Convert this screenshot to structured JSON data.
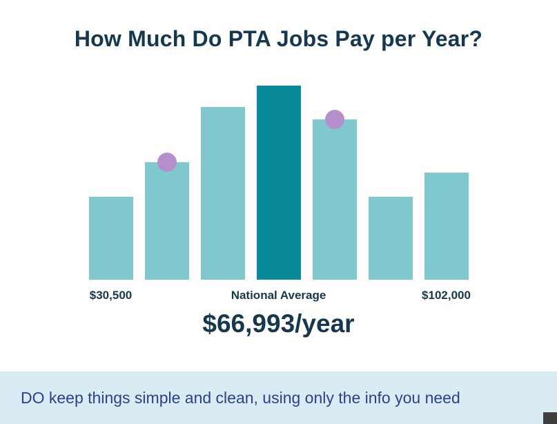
{
  "page": {
    "title": "How Much Do PTA Jobs Pay per Year?"
  },
  "chart_data": {
    "type": "bar",
    "title": "How Much Do PTA Jobs Pay per Year?",
    "ylim": [
      0,
      281
    ],
    "grid": false,
    "legend": "none",
    "bars": [
      {
        "value": 120,
        "highlight": false,
        "dot": false
      },
      {
        "value": 170,
        "highlight": false,
        "dot": true
      },
      {
        "value": 250,
        "highlight": false,
        "dot": false
      },
      {
        "value": 281,
        "highlight": true,
        "dot": false
      },
      {
        "value": 232,
        "highlight": false,
        "dot": true
      },
      {
        "value": 120,
        "highlight": false,
        "dot": false
      },
      {
        "value": 155,
        "highlight": false,
        "dot": false
      }
    ],
    "x_tick_labels": [
      "$30,500",
      "National Average",
      "$102,000"
    ],
    "annotation": "$66,993/year"
  },
  "labels": {
    "min": "$30,500",
    "center": "National Average",
    "max": "$102,000",
    "average": "$66,993/year"
  },
  "footer": {
    "tip": "DO keep things simple and clean, using only the info you need"
  },
  "colors": {
    "background": "#ffffff",
    "heading_text": "#16384f",
    "label_text": "#16384f",
    "bar_light": "#7fc9ce",
    "bar_highlight": "#0a8a99",
    "dot": "#b58fcb",
    "banner_bg": "#d9ecf3",
    "banner_text": "#2c3f92",
    "corner_artifact": "#3f3f3f"
  }
}
